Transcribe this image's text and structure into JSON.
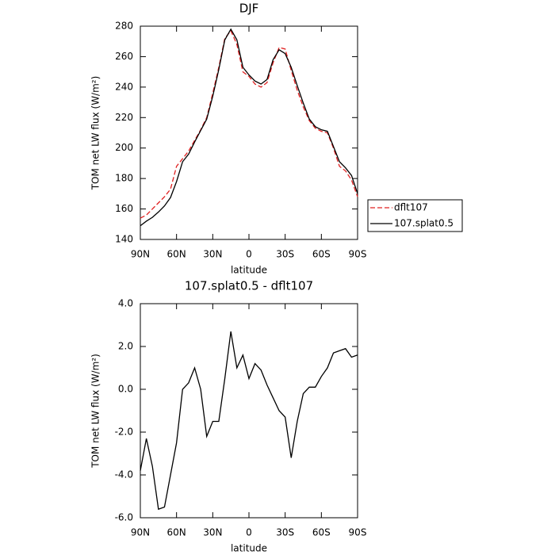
{
  "chart_data": [
    {
      "type": "line",
      "title": "DJF",
      "x_label": "latitude",
      "y_label": "TOM net LW flux (W/m²)",
      "x": [
        90,
        85,
        80,
        75,
        70,
        65,
        60,
        55,
        50,
        45,
        40,
        35,
        30,
        25,
        20,
        15,
        10,
        5,
        0,
        -5,
        -10,
        -15,
        -20,
        -25,
        -30,
        -35,
        -40,
        -45,
        -50,
        -55,
        -60,
        -65,
        -70,
        -75,
        -80,
        -85,
        -90
      ],
      "series": [
        {
          "name": "dflt107",
          "color": "#e02020",
          "dash": true,
          "values": [
            154,
            156,
            160,
            164,
            168,
            173,
            188,
            193,
            198,
            205,
            212,
            220,
            236,
            253,
            272,
            277,
            268,
            250,
            247,
            242,
            240,
            243,
            256,
            266,
            265,
            251,
            238,
            227,
            218,
            213,
            211,
            210,
            200,
            188,
            185,
            179,
            168
          ]
        },
        {
          "name": "107.splat0.5",
          "color": "#000000",
          "dash": false,
          "values": [
            149,
            152,
            154.5,
            158,
            162,
            167.5,
            178,
            191,
            196,
            204,
            211.5,
            219,
            234,
            251.5,
            271,
            278,
            271,
            253,
            248,
            244,
            242,
            245,
            258,
            264.5,
            262,
            253,
            241,
            229.5,
            219,
            214,
            212,
            211,
            201,
            191,
            187,
            182,
            170
          ]
        }
      ],
      "xlim": [
        90,
        -90
      ],
      "xticks": [
        {
          "value": 90,
          "label": "90N"
        },
        {
          "value": 60,
          "label": "60N"
        },
        {
          "value": 30,
          "label": "30N"
        },
        0,
        {
          "value": -30,
          "label": "30S"
        },
        {
          "value": -60,
          "label": "60S"
        },
        {
          "value": -90,
          "label": "90S"
        }
      ],
      "ylim": [
        140,
        280
      ],
      "yticks": [
        140,
        160,
        180,
        200,
        220,
        240,
        260,
        280
      ],
      "legend": "right"
    },
    {
      "type": "line",
      "title": "107.splat0.5 - dflt107",
      "x_label": "latitude",
      "y_label": "TOM net LW flux (W/m²)",
      "x": [
        90,
        85,
        80,
        75,
        70,
        65,
        60,
        55,
        50,
        45,
        40,
        35,
        30,
        25,
        20,
        15,
        10,
        5,
        0,
        -5,
        -10,
        -15,
        -20,
        -25,
        -30,
        -35,
        -40,
        -45,
        -50,
        -55,
        -60,
        -65,
        -70,
        -75,
        -80,
        -85,
        -90
      ],
      "values": [
        -3.8,
        -2.3,
        -3.6,
        -5.6,
        -5.5,
        -4.0,
        -2.5,
        0,
        0.3,
        1.0,
        0.0,
        -2.2,
        -1.5,
        -1.5,
        0.5,
        2.7,
        1.0,
        1.6,
        0.5,
        1.2,
        0.9,
        0.2,
        -0.4,
        -1.0,
        -1.3,
        -3.2,
        -1.5,
        -0.2,
        0.1,
        0.1,
        0.6,
        1.0,
        1.7,
        1.8,
        1.9,
        1.5,
        1.6
      ],
      "color": "#000000",
      "xlim": [
        90,
        -90
      ],
      "xticks": [
        {
          "value": 90,
          "label": "90N"
        },
        {
          "value": 60,
          "label": "60N"
        },
        {
          "value": 30,
          "label": "30N"
        },
        0,
        {
          "value": -30,
          "label": "30S"
        },
        {
          "value": -60,
          "label": "60S"
        },
        {
          "value": -90,
          "label": "90S"
        }
      ],
      "ylim": [
        -6,
        4
      ],
      "yticks": [
        {
          "value": -6,
          "label": "-6.0"
        },
        {
          "value": -4,
          "label": "-4.0"
        },
        {
          "value": -2,
          "label": "-2.0"
        },
        {
          "value": 0,
          "label": "0.0"
        },
        {
          "value": 2,
          "label": "2.0"
        },
        {
          "value": 4,
          "label": "4.0"
        }
      ]
    }
  ]
}
